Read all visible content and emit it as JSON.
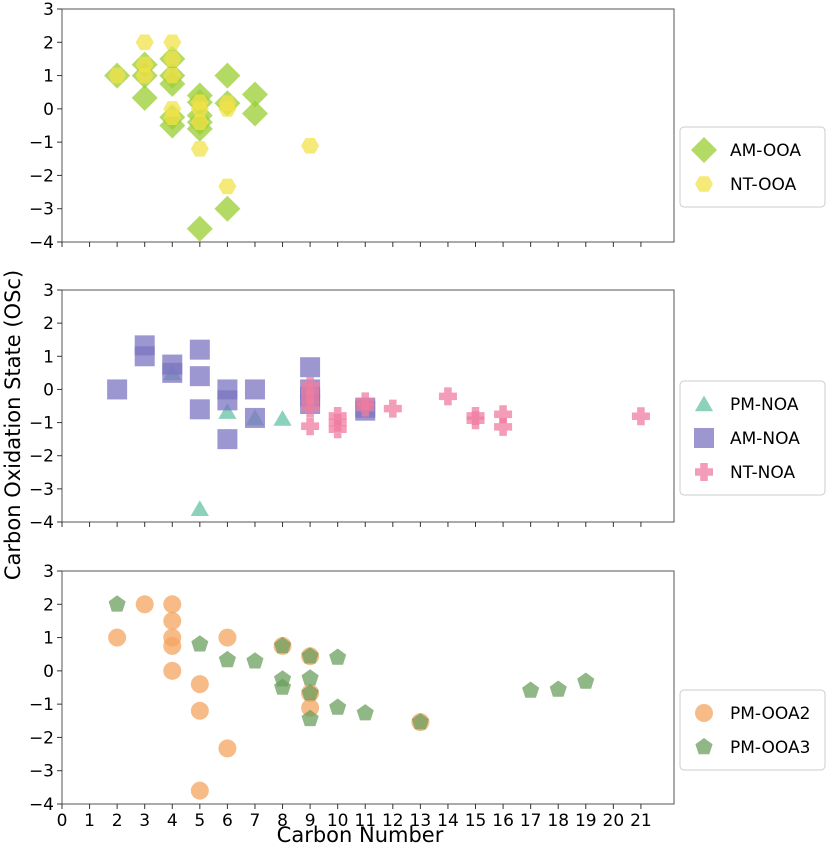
{
  "chart_data": {
    "type": "scatter",
    "ylabel": "Carbon Oxidation State (OSc)",
    "xlabel": "Carbon Number",
    "x_ticks": [
      "0",
      "1",
      "2",
      "3",
      "4",
      "5",
      "6",
      "7",
      "8",
      "9",
      "10",
      "11",
      "12",
      "13",
      "14",
      "15",
      "16",
      "17",
      "18",
      "19",
      "20",
      "21"
    ],
    "y_ticks": [
      "3",
      "2",
      "1",
      "0",
      "−1",
      "−2",
      "−3",
      "−4"
    ],
    "xlim": [
      0,
      22.2
    ],
    "ylim": [
      -4,
      3
    ],
    "grid": false,
    "legend_position": "right",
    "panels": [
      {
        "series": [
          {
            "name": "AM-OOA",
            "marker": "diamond",
            "color": "#9acd32",
            "points": [
              [
                2,
                1
              ],
              [
                3,
                1.33
              ],
              [
                3,
                1
              ],
              [
                3,
                0.33
              ],
              [
                4,
                1.5
              ],
              [
                4,
                1
              ],
              [
                4,
                0.75
              ],
              [
                4,
                -0.25
              ],
              [
                4,
                -0.5
              ],
              [
                5,
                0.4
              ],
              [
                5,
                0.2
              ],
              [
                5,
                -0.2
              ],
              [
                5,
                -0.4
              ],
              [
                5,
                -0.6
              ],
              [
                5,
                -3.6
              ],
              [
                6,
                1
              ],
              [
                6,
                0.17
              ],
              [
                6,
                -3
              ],
              [
                7,
                0.43
              ],
              [
                7,
                -0.14
              ]
            ]
          },
          {
            "name": "NT-OOA",
            "marker": "hexagon",
            "color": "#f2e24a",
            "points": [
              [
                2,
                1
              ],
              [
                3,
                2
              ],
              [
                3,
                1.33
              ],
              [
                3,
                1
              ],
              [
                4,
                2
              ],
              [
                4,
                1.5
              ],
              [
                4,
                1
              ],
              [
                4,
                0
              ],
              [
                4,
                -0.25
              ],
              [
                5,
                0.2
              ],
              [
                5,
                0
              ],
              [
                5,
                -0.4
              ],
              [
                5,
                -1.2
              ],
              [
                6,
                0.17
              ],
              [
                6,
                0
              ],
              [
                6,
                -2.33
              ],
              [
                9,
                -1.11
              ]
            ]
          }
        ]
      },
      {
        "series": [
          {
            "name": "PM-NOA",
            "marker": "triangle",
            "color": "#66c2a5",
            "points": [
              [
                4,
                0.5
              ],
              [
                5,
                -3.6
              ],
              [
                6,
                -0.67
              ],
              [
                7,
                -0.86
              ],
              [
                8,
                -0.88
              ]
            ]
          },
          {
            "name": "AM-NOA",
            "marker": "square",
            "color": "#7b74c0",
            "points": [
              [
                2,
                0
              ],
              [
                3,
                1.33
              ],
              [
                3,
                1
              ],
              [
                4,
                0.75
              ],
              [
                4,
                0.5
              ],
              [
                5,
                1.2
              ],
              [
                5,
                0.4
              ],
              [
                5,
                -0.6
              ],
              [
                6,
                0
              ],
              [
                6,
                -0.33
              ],
              [
                6,
                -1.5
              ],
              [
                7,
                0
              ],
              [
                7,
                -0.86
              ],
              [
                9,
                0.67
              ],
              [
                9,
                0
              ],
              [
                9,
                -0.22
              ],
              [
                9,
                -0.44
              ],
              [
                11,
                -0.55
              ],
              [
                11,
                -0.64
              ]
            ]
          },
          {
            "name": "NT-NOA",
            "marker": "plus",
            "color": "#f07ca0",
            "points": [
              [
                9,
                0.11
              ],
              [
                9,
                -0.11
              ],
              [
                9,
                -0.33
              ],
              [
                9,
                -0.56
              ],
              [
                9,
                -1.11
              ],
              [
                10,
                -0.8
              ],
              [
                10,
                -1
              ],
              [
                10,
                -1.2
              ],
              [
                11,
                -0.36
              ],
              [
                11,
                -0.55
              ],
              [
                12,
                -0.58
              ],
              [
                14,
                -0.21
              ],
              [
                15,
                -0.8
              ],
              [
                15,
                -0.93
              ],
              [
                16,
                -0.75
              ],
              [
                16,
                -1.13
              ],
              [
                21,
                -0.81
              ]
            ]
          }
        ]
      },
      {
        "series": [
          {
            "name": "PM-OOA2",
            "marker": "circle",
            "color": "#f4a460",
            "points": [
              [
                2,
                1
              ],
              [
                3,
                2
              ],
              [
                4,
                2
              ],
              [
                4,
                1.5
              ],
              [
                4,
                1
              ],
              [
                4,
                0.75
              ],
              [
                4,
                0
              ],
              [
                5,
                -0.4
              ],
              [
                5,
                -1.2
              ],
              [
                5,
                -3.6
              ],
              [
                6,
                1
              ],
              [
                6,
                -2.33
              ],
              [
                8,
                0.75
              ],
              [
                9,
                0.44
              ],
              [
                9,
                -0.67
              ],
              [
                9,
                -1.11
              ],
              [
                13,
                -1.54
              ]
            ]
          },
          {
            "name": "PM-OOA3",
            "marker": "pentagon",
            "color": "#6b9f5e",
            "points": [
              [
                2,
                2
              ],
              [
                5,
                0.8
              ],
              [
                6,
                0.33
              ],
              [
                7,
                0.29
              ],
              [
                8,
                0.75
              ],
              [
                8,
                -0.25
              ],
              [
                8,
                -0.5
              ],
              [
                9,
                0.44
              ],
              [
                9,
                -0.22
              ],
              [
                9,
                -0.67
              ],
              [
                9,
                -1.44
              ],
              [
                10,
                0.4
              ],
              [
                10,
                -1.1
              ],
              [
                11,
                -1.27
              ],
              [
                13,
                -1.54
              ],
              [
                17,
                -0.59
              ],
              [
                18,
                -0.56
              ],
              [
                19,
                -0.32
              ]
            ]
          }
        ]
      }
    ]
  }
}
